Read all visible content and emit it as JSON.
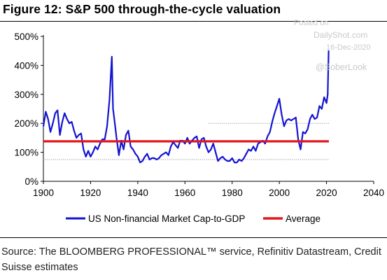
{
  "title": "Figure 12: S&P 500 through-the-cycle valuation",
  "watermark": {
    "line1": "Posted on",
    "line2": "DailyShot.com",
    "line3": "16-Dec-2020",
    "line4": "@SoberLook"
  },
  "source": "Source: The BLOOMBERG PROFESSIONAL™ service, Refinitiv Datastream, Credit Suisse estimates",
  "colors": {
    "series": "#1414d2",
    "average": "#e0181c",
    "band": "#8a8a8a"
  },
  "chart_data": {
    "type": "line",
    "title": "Figure 12: S&P 500 through-the-cycle valuation",
    "xlabel": "",
    "ylabel": "",
    "xlim": [
      1900,
      2040
    ],
    "ylim": [
      0,
      500
    ],
    "xticks": [
      1900,
      1920,
      1940,
      1960,
      1980,
      2000,
      2020,
      2040
    ],
    "yticks": [
      0,
      100,
      200,
      300,
      400,
      500
    ],
    "ytick_labels": [
      "0%",
      "100%",
      "200%",
      "300%",
      "400%",
      "500%"
    ],
    "grid": false,
    "legend_position": "bottom",
    "series": [
      {
        "name": "US Non-financial Market Cap-to-GDP",
        "x": [
          1900,
          1901,
          1902,
          1903,
          1904,
          1905,
          1906,
          1907,
          1908,
          1909,
          1910,
          1911,
          1912,
          1913,
          1914,
          1915,
          1916,
          1917,
          1918,
          1919,
          1920,
          1921,
          1922,
          1923,
          1924,
          1925,
          1926,
          1927,
          1928,
          1929,
          1929.5,
          1930,
          1931,
          1932,
          1933,
          1934,
          1935,
          1936,
          1937,
          1938,
          1939,
          1940,
          1941,
          1942,
          1943,
          1944,
          1945,
          1946,
          1947,
          1948,
          1949,
          1950,
          1951,
          1952,
          1953,
          1954,
          1955,
          1956,
          1957,
          1958,
          1959,
          1960,
          1961,
          1962,
          1963,
          1964,
          1965,
          1966,
          1967,
          1968,
          1969,
          1970,
          1971,
          1972,
          1973,
          1974,
          1975,
          1976,
          1977,
          1978,
          1979,
          1980,
          1981,
          1982,
          1983,
          1984,
          1985,
          1986,
          1987,
          1988,
          1989,
          1990,
          1991,
          1992,
          1993,
          1994,
          1995,
          1996,
          1997,
          1998,
          1999,
          2000,
          2001,
          2002,
          2003,
          2004,
          2005,
          2006,
          2007,
          2008,
          2009,
          2010,
          2011,
          2012,
          2013,
          2014,
          2015,
          2016,
          2017,
          2018,
          2019,
          2020,
          2020.5,
          2020.9
        ],
        "values": [
          190,
          240,
          215,
          170,
          200,
          235,
          245,
          160,
          205,
          235,
          215,
          200,
          205,
          175,
          150,
          160,
          165,
          110,
          85,
          105,
          85,
          100,
          120,
          110,
          130,
          145,
          145,
          190,
          280,
          430,
          250,
          220,
          150,
          90,
          140,
          110,
          160,
          175,
          120,
          110,
          95,
          85,
          65,
          70,
          85,
          95,
          75,
          80,
          80,
          75,
          80,
          90,
          95,
          100,
          90,
          120,
          135,
          125,
          115,
          140,
          140,
          130,
          150,
          130,
          140,
          150,
          155,
          115,
          145,
          150,
          120,
          100,
          110,
          130,
          100,
          70,
          80,
          85,
          75,
          70,
          70,
          80,
          65,
          65,
          75,
          70,
          80,
          95,
          110,
          105,
          120,
          105,
          130,
          135,
          140,
          130,
          155,
          170,
          205,
          235,
          260,
          285,
          230,
          190,
          210,
          215,
          210,
          215,
          220,
          145,
          110,
          170,
          165,
          180,
          215,
          230,
          215,
          220,
          260,
          250,
          290,
          270,
          300,
          450
        ]
      },
      {
        "name": "Average",
        "x": [
          1900,
          2021
        ],
        "values": [
          138,
          138
        ]
      }
    ],
    "band_lines": [
      {
        "value": 200,
        "x": [
          1970,
          2021
        ]
      },
      {
        "value": 75,
        "x": [
          1900,
          2021
        ]
      }
    ]
  }
}
